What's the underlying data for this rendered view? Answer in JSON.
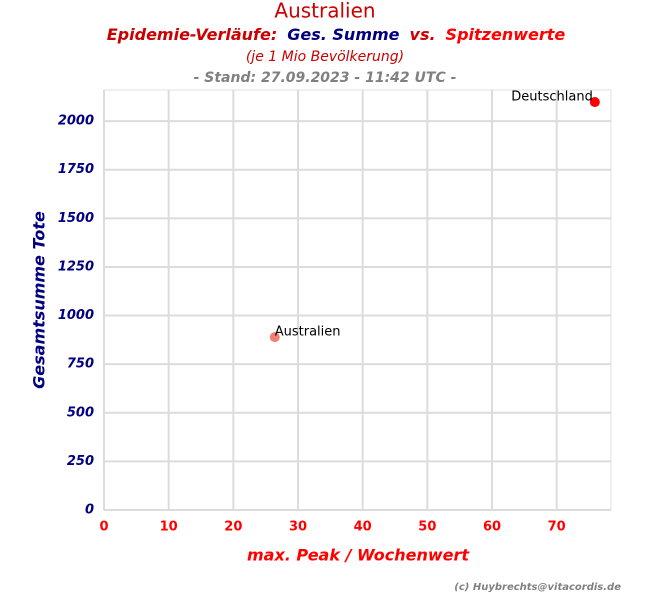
{
  "chart_data": {
    "type": "scatter",
    "title": "Australien",
    "subtitle": [
      {
        "text": "Epidemie-Verläufe:",
        "color": "#cc0000"
      },
      {
        "text": "Ges. Summe",
        "color": "#000080"
      },
      {
        "text": "vs.",
        "color": "#cc0000"
      },
      {
        "text": "Spitzenwerte",
        "color": "#ff0000"
      }
    ],
    "note": "(je 1 Mio Bevölkerung)",
    "stand": "- Stand: 27.09.2023 - 11:42 UTC -",
    "credit": "(c) Huybrechts@vitacordis.de",
    "x_label": "max. Peak / Wochenwert",
    "y_label": "Gesamtsumme Tote",
    "x": [
      26.4,
      75.9
    ],
    "values": [
      889,
      2098
    ],
    "labels": [
      "Australien",
      "Deutschland"
    ],
    "colors": [
      "#f08070",
      "#ff0000"
    ],
    "xlim": [
      0,
      78.4
    ],
    "ylim": [
      0,
      2160
    ],
    "xticks": [
      0,
      10,
      20,
      30,
      40,
      50,
      60,
      70
    ],
    "yticks": [
      0,
      250,
      500,
      750,
      1000,
      1250,
      1500,
      1750,
      2000
    ],
    "grid": true
  }
}
